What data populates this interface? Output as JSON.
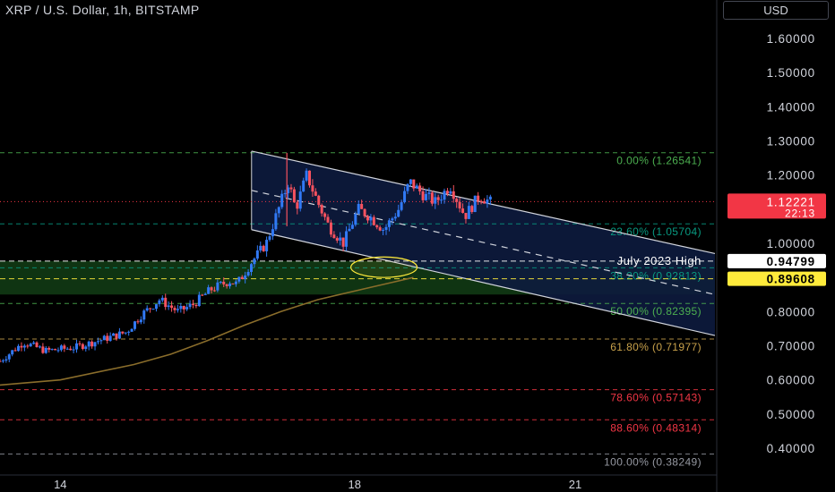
{
  "header": {
    "title": "XRP / U.S. Dollar, 1h, BITSTAMP",
    "currency": "USD"
  },
  "chart_data": {
    "type": "candlestick",
    "title": "XRP / U.S. Dollar, 1h, BITSTAMP",
    "ylim": [
      0.36,
      1.72
    ],
    "y_ticks": [
      1.6,
      1.5,
      1.4,
      1.3,
      1.2,
      1.1,
      1.0,
      0.9,
      0.8,
      0.7,
      0.6,
      0.5,
      0.4
    ],
    "y_tick_labels": [
      "1.60000",
      "1.50000",
      "1.40000",
      "1.30000",
      "1.20000",
      "1.10000",
      "1.00000",
      "0.90000",
      "0.80000",
      "0.70000",
      "0.60000",
      "0.50000",
      "0.40000"
    ],
    "x_ticks": [
      {
        "label": "14",
        "day": 14
      },
      {
        "label": "18",
        "day": 18
      },
      {
        "label": "21",
        "day": 21
      }
    ],
    "x_range_days": [
      13.18,
      22.9
    ],
    "current_price": {
      "value": 1.12221,
      "text": "1.12221",
      "countdown": "22:13",
      "color": "#f23645"
    },
    "fib_levels": [
      {
        "label": "0.00% (1.26541)",
        "value": 1.26541,
        "color": "#4caf50"
      },
      {
        "label": "23.60% (1.05704)",
        "value": 1.05704,
        "color": "#089981"
      },
      {
        "label": "38.20% (0.92813)",
        "value": 0.92813,
        "color": "#089981"
      },
      {
        "label": "50.00% (0.82395)",
        "value": 0.82395,
        "color": "#4caf50"
      },
      {
        "label": "61.80% (0.71977)",
        "value": 0.71977,
        "color": "#c8a14b"
      },
      {
        "label": "78.60% (0.57143)",
        "value": 0.57143,
        "color": "#f23645"
      },
      {
        "label": "88.60% (0.48314)",
        "value": 0.48314,
        "color": "#f23645"
      },
      {
        "label": "100.00% (0.38249)",
        "value": 0.38249,
        "color": "#9598a1"
      }
    ],
    "horizontal_lines": [
      {
        "label": "July 2023 High",
        "value": 0.94799,
        "text": "0.94799",
        "color": "#ffffff"
      },
      {
        "value": 0.89608,
        "text": "0.89608",
        "color": "#ffeb3b"
      }
    ],
    "zone": {
      "top": 0.94799,
      "bottom": 0.85,
      "color": "#1b5e20"
    },
    "channel": {
      "upper": [
        [
          16.6,
          1.27
        ],
        [
          22.9,
          0.97
        ]
      ],
      "lower": [
        [
          16.6,
          1.04
        ],
        [
          22.9,
          0.73
        ]
      ],
      "middle": [
        [
          16.6,
          1.155
        ],
        [
          22.9,
          0.85
        ]
      ],
      "fill": "#0d1b3e"
    },
    "moving_average": {
      "color": "#8a6d2b",
      "points": [
        [
          13.18,
          0.585
        ],
        [
          14.0,
          0.6
        ],
        [
          15.0,
          0.645
        ],
        [
          15.5,
          0.675
        ],
        [
          16.0,
          0.715
        ],
        [
          16.5,
          0.76
        ],
        [
          17.0,
          0.8
        ],
        [
          17.5,
          0.835
        ],
        [
          18.0,
          0.86
        ],
        [
          18.5,
          0.885
        ],
        [
          18.8,
          0.9
        ]
      ]
    },
    "ellipse": {
      "center": [
        18.4,
        0.93
      ],
      "rx_days": 0.45,
      "ry": 0.03,
      "color": "#ffeb3b"
    },
    "candle_color_up": "#3179f5",
    "candle_color_down": "#f7525f"
  }
}
